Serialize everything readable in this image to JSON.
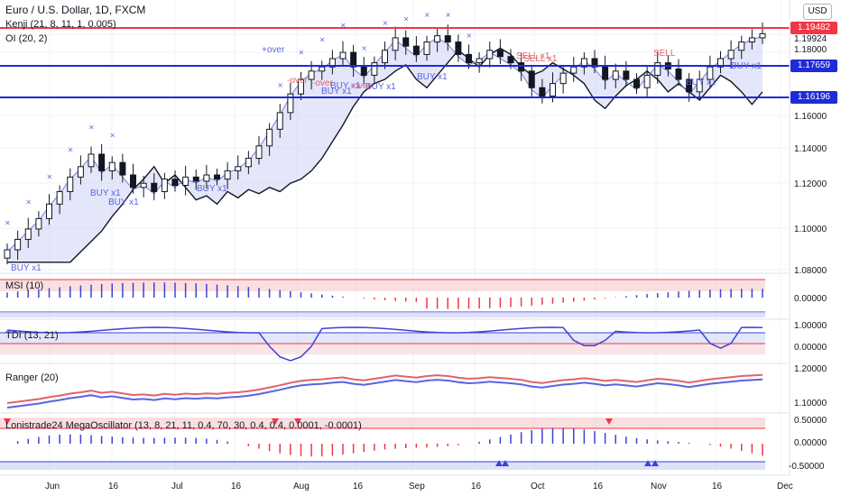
{
  "legends": {
    "main_title": "Euro / U.S. Dollar, 1D, FXCM",
    "kenji": "Kenji (21, 8, 11, 1, 0.005)",
    "oi": "OI (20, 2)",
    "msi": "MSI (10)",
    "tdi": "TDI (13, 21)",
    "ranger": "Ranger (20)",
    "mega": "Lonistrade24 MegaOscillator (13, 8, 21, 11, 0.4, 70, 30, 0.4, 0.4, 0.0001, -0.0001)"
  },
  "currency_button": "USD",
  "price_axis": {
    "main": [
      "1.19924",
      "1.18000",
      "1.16000",
      "1.14000",
      "1.12000",
      "1.10000",
      "1.08000"
    ],
    "msi": [
      "0.00000"
    ],
    "tdi": [
      "1.00000",
      "0.00000"
    ],
    "ranger": [
      "1.20000",
      "1.10000"
    ],
    "mega": [
      "0.50000",
      "0.00000",
      "-0.50000"
    ]
  },
  "price_tags": [
    {
      "label": "1.19482",
      "color": "#f23645"
    },
    {
      "label": "1.17659",
      "color": "#1e2bd6"
    },
    {
      "label": "1.16196",
      "color": "#1e2bd6"
    }
  ],
  "time_axis": [
    "Jun",
    "16",
    "Jul",
    "16",
    "Aug",
    "16",
    "Sep",
    "16",
    "Oct",
    "16",
    "Nov",
    "16",
    "Dec"
  ],
  "annotations": [
    "BUY x1",
    "BUY x1",
    "BUY x1",
    "BUY x1",
    "BUY x1",
    "BUY x1",
    "BUY x1",
    "BUY x1",
    "BUY x1",
    "BUY x1",
    "+over",
    "-over",
    "-over",
    "-over",
    "SELL x1",
    "SELL x1",
    "SELL"
  ],
  "chart_data": {
    "type": "candlestick",
    "symbol": "Euro / U.S. Dollar",
    "interval": "1D",
    "horizontal_lines": [
      1.19482,
      1.17659,
      1.16196
    ],
    "ylim": [
      1.08,
      1.205
    ],
    "approx_close": [
      1.09,
      1.095,
      1.1,
      1.105,
      1.112,
      1.118,
      1.125,
      1.13,
      1.136,
      1.128,
      1.132,
      1.126,
      1.12,
      1.122,
      1.118,
      1.124,
      1.121,
      1.125,
      1.123,
      1.126,
      1.124,
      1.128,
      1.13,
      1.134,
      1.14,
      1.148,
      1.156,
      1.165,
      1.172,
      1.176,
      1.178,
      1.182,
      1.185,
      1.178,
      1.174,
      1.18,
      1.186,
      1.192,
      1.188,
      1.184,
      1.19,
      1.193,
      1.19,
      1.184,
      1.18,
      1.182,
      1.186,
      1.183,
      1.18,
      1.176,
      1.168,
      1.164,
      1.17,
      1.175,
      1.178,
      1.182,
      1.178,
      1.172,
      1.176,
      1.172,
      1.168,
      1.174,
      1.18,
      1.177,
      1.172,
      1.166,
      1.172,
      1.178,
      1.182,
      1.186,
      1.19,
      1.192,
      1.194
    ]
  }
}
